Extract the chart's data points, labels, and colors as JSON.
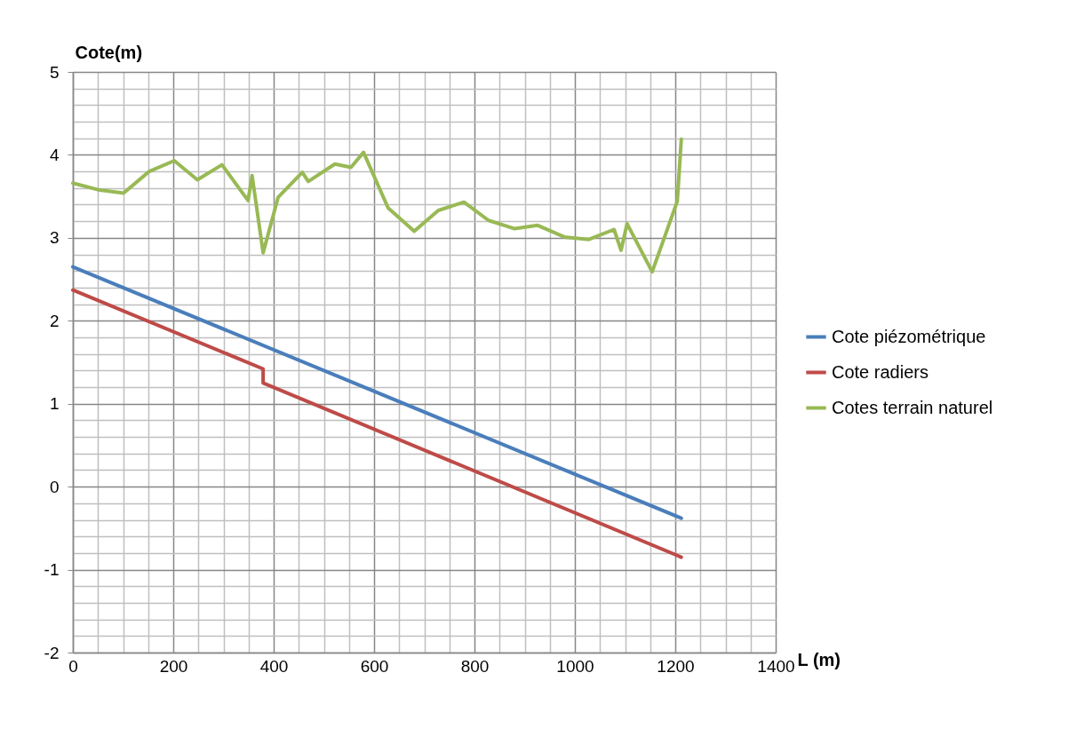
{
  "chart_data": {
    "type": "line",
    "xlabel": "L (m)",
    "ylabel": "Cote(m)",
    "xlim": [
      0,
      1400
    ],
    "ylim": [
      -2,
      5
    ],
    "xticks": [
      0,
      {
        "value": 50,
        "label": null
      },
      {
        "value": 100,
        "label": null
      },
      {
        "value": 150,
        "label": null
      },
      200,
      {
        "value": 250,
        "label": null
      },
      {
        "value": 300,
        "label": null
      },
      {
        "value": 350,
        "label": null
      },
      400,
      {
        "value": 450,
        "label": null
      },
      {
        "value": 500,
        "label": null
      },
      {
        "value": 550,
        "label": null
      },
      600,
      {
        "value": 650,
        "label": null
      },
      {
        "value": 700,
        "label": null
      },
      {
        "value": 750,
        "label": null
      },
      800,
      {
        "value": 850,
        "label": null
      },
      {
        "value": 900,
        "label": null
      },
      {
        "value": 950,
        "label": null
      },
      1000,
      {
        "value": 1050,
        "label": null
      },
      {
        "value": 1100,
        "label": null
      },
      {
        "value": 1150,
        "label": null
      },
      1200,
      {
        "value": 1250,
        "label": null
      },
      {
        "value": 1300,
        "label": null
      },
      {
        "value": 1350,
        "label": null
      },
      1400
    ],
    "yticks": [
      -2,
      {
        "value": -1.8,
        "label": null
      },
      {
        "value": -1.6,
        "label": null
      },
      {
        "value": -1.4,
        "label": null
      },
      {
        "value": -1.2,
        "label": null
      },
      -1,
      {
        "value": -0.8,
        "label": null
      },
      {
        "value": -0.6,
        "label": null
      },
      {
        "value": -0.4,
        "label": null
      },
      {
        "value": -0.2,
        "label": null
      },
      0,
      {
        "value": 0.2,
        "label": null
      },
      {
        "value": 0.4,
        "label": null
      },
      {
        "value": 0.6,
        "label": null
      },
      {
        "value": 0.8,
        "label": null
      },
      1,
      {
        "value": 1.2,
        "label": null
      },
      {
        "value": 1.4,
        "label": null
      },
      {
        "value": 1.6,
        "label": null
      },
      {
        "value": 1.8,
        "label": null
      },
      2,
      {
        "value": 2.2,
        "label": null
      },
      {
        "value": 2.4,
        "label": null
      },
      {
        "value": 2.6,
        "label": null
      },
      {
        "value": 2.8,
        "label": null
      },
      3,
      {
        "value": 3.2,
        "label": null
      },
      {
        "value": 3.4,
        "label": null
      },
      {
        "value": 3.6,
        "label": null
      },
      {
        "value": 3.8,
        "label": null
      },
      4,
      {
        "value": 4.2,
        "label": null
      },
      {
        "value": 4.4,
        "label": null
      },
      {
        "value": 4.6,
        "label": null
      },
      {
        "value": 4.8,
        "label": null
      },
      5
    ],
    "grid": true,
    "legend": "right",
    "marker": "none",
    "line_style": "solid",
    "series": [
      {
        "name": "Cote piézométrique",
        "color": "#4a7ebb",
        "x": [
          0,
          1212
        ],
        "values": [
          2.65,
          -0.38
        ]
      },
      {
        "name": "Cote radiers",
        "color": "#be4b48",
        "x": [
          0,
          379,
          379,
          1212
        ],
        "values": [
          2.37,
          1.42,
          1.25,
          -0.85
        ]
      },
      {
        "name": "Cotes terrain naturel",
        "color": "#98b954",
        "x": [
          0,
          50,
          101,
          152,
          202,
          248,
          297,
          349,
          357,
          379,
          409,
          457,
          469,
          522,
          554,
          579,
          628,
          680,
          728,
          779,
          828,
          880,
          926,
          979,
          1028,
          1078,
          1092,
          1104,
          1154,
          1204,
          1212
        ],
        "values": [
          3.66,
          3.58,
          3.54,
          3.8,
          3.93,
          3.7,
          3.88,
          3.45,
          3.75,
          2.82,
          3.49,
          3.79,
          3.68,
          3.89,
          3.85,
          4.03,
          3.36,
          3.08,
          3.33,
          3.43,
          3.21,
          3.11,
          3.15,
          3.01,
          2.98,
          3.1,
          2.85,
          3.17,
          2.59,
          3.44,
          4.19
        ]
      }
    ]
  }
}
